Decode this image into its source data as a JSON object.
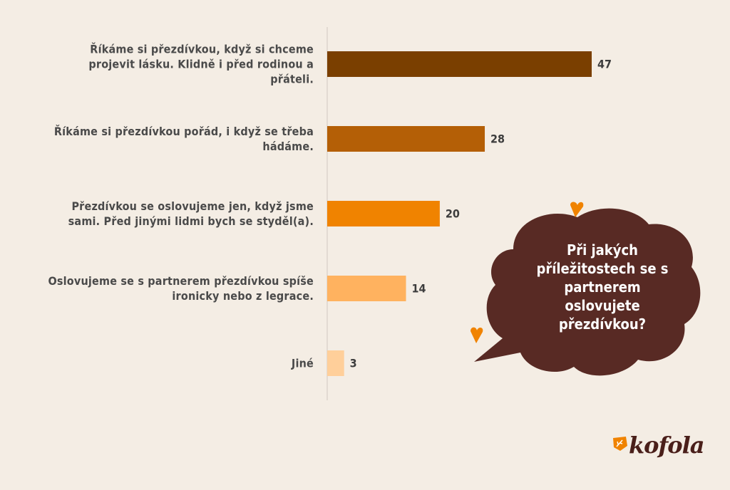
{
  "chart_data": {
    "type": "bar",
    "orientation": "horizontal",
    "categories": [
      "Říkáme si přezdívkou, když si chceme projevit lásku. Klidně i před rodinou a přáteli.",
      "Říkáme si přezdívkou pořád, i když se třeba hádáme.",
      "Přezdívkou se oslovujeme jen, když jsme sami. Před jinými lidmi bych se styděl(a).",
      "Oslovujeme se s partnerem přezdívkou spíše ironicky nebo z legrace.",
      "Jiné"
    ],
    "values": [
      47,
      28,
      20,
      14,
      3
    ],
    "data_labels": [
      "47",
      "28",
      "20",
      "14",
      "3"
    ],
    "colors": [
      "#7a3f00",
      "#b45f06",
      "#f08300",
      "#ffb25f",
      "#ffcf9a"
    ],
    "title": "Při jakých příležitostech se s partnerem oslovujete přezdívkou?",
    "xlim": [
      0,
      50
    ],
    "grid": false,
    "legend": "none"
  },
  "colors": {
    "background": "#f4ede4",
    "bubble": "#582a24",
    "accent": "#f08300"
  },
  "brand": {
    "logo_text": "kofola"
  }
}
